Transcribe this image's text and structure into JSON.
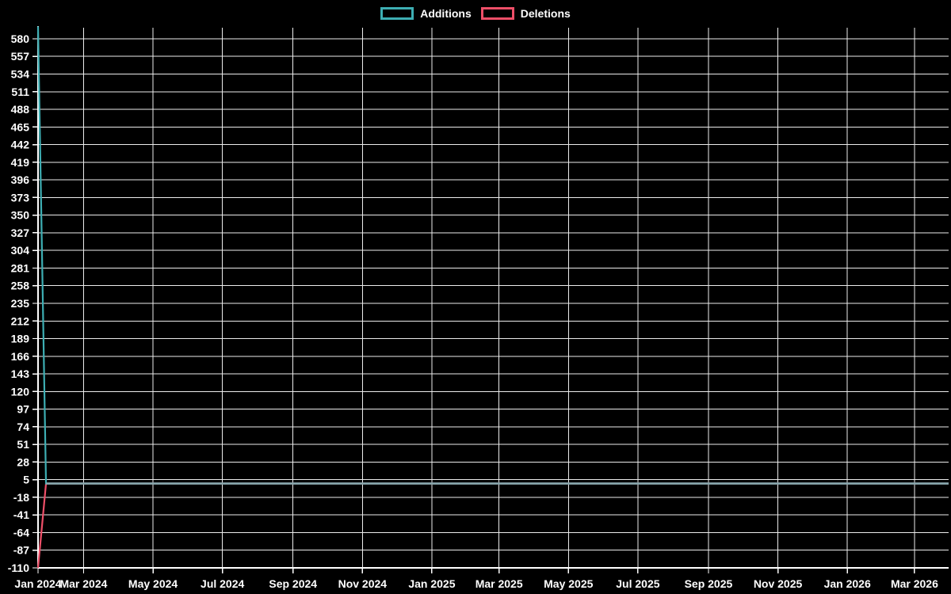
{
  "chart_data": {
    "type": "line",
    "title": "",
    "background_color": "#000000",
    "grid": true,
    "grid_color": "#ececec",
    "legend_position": "top-center",
    "legend": {
      "items": [
        {
          "label": "Additions",
          "color": "#3DAEB3"
        },
        {
          "label": "Deletions",
          "color": "#EE4F68"
        }
      ]
    },
    "x_domain": [
      "2024-01-21",
      "2026-03-31"
    ],
    "y_domain": [
      -110,
      596.5
    ],
    "y_ticks": [
      580,
      557,
      534,
      511,
      488,
      465,
      442,
      419,
      396,
      373,
      350,
      327,
      304,
      281,
      258,
      235,
      212,
      189,
      166,
      143,
      120,
      97,
      74,
      51,
      28,
      5,
      -18,
      -41,
      -64,
      -87,
      -110
    ],
    "x_ticks": [
      {
        "date": "2024-01-21",
        "label": "Jan 2024"
      },
      {
        "date": "2024-03-01",
        "label": "Mar 2024"
      },
      {
        "date": "2024-05-01",
        "label": "May 2024"
      },
      {
        "date": "2024-07-01",
        "label": "Jul 2024"
      },
      {
        "date": "2024-09-01",
        "label": "Sep 2024"
      },
      {
        "date": "2024-11-01",
        "label": "Nov 2024"
      },
      {
        "date": "2025-01-01",
        "label": "Jan 2025"
      },
      {
        "date": "2025-03-01",
        "label": "Mar 2025"
      },
      {
        "date": "2025-05-01",
        "label": "May 2025"
      },
      {
        "date": "2025-07-01",
        "label": "Jul 2025"
      },
      {
        "date": "2025-09-01",
        "label": "Sep 2025"
      },
      {
        "date": "2025-11-01",
        "label": "Nov 2025"
      },
      {
        "date": "2026-01-01",
        "label": "Jan 2026"
      },
      {
        "date": "2026-03-01",
        "label": "Mar 2026"
      }
    ],
    "series": [
      {
        "name": "Additions",
        "color": "#3DAEB3",
        "points": [
          {
            "date": "2024-01-21",
            "value": 596
          },
          {
            "date": "2024-01-28",
            "value": 0
          },
          {
            "date": "2026-03-31",
            "value": 0
          }
        ]
      },
      {
        "name": "Deletions",
        "color": "#EE4F68",
        "points": [
          {
            "date": "2024-01-21",
            "value": -110
          },
          {
            "date": "2024-01-28",
            "value": 0
          },
          {
            "date": "2026-03-31",
            "value": 0
          }
        ]
      }
    ],
    "overlap_segment": {
      "from": "2024-01-28",
      "to": "2026-03-31",
      "value": 0,
      "color": "#8AA9AF"
    }
  }
}
